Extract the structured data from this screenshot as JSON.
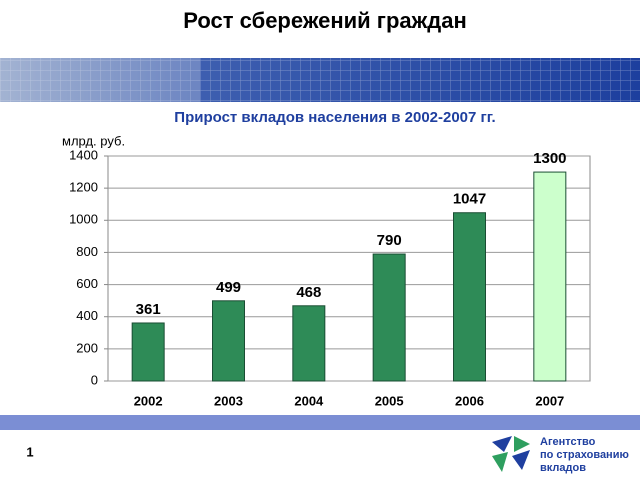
{
  "slide": {
    "title": "Рост сбережений граждан",
    "page_number": "1",
    "logo": [
      "Агентство",
      "по страхованию",
      "вкладов"
    ]
  },
  "chart_data": {
    "type": "bar",
    "title": "Прирост вкладов населения в 2002-2007 гг.",
    "y_label": "млрд. руб.",
    "categories": [
      "2002",
      "2003",
      "2004",
      "2005",
      "2006",
      "2007"
    ],
    "values": [
      361,
      499,
      468,
      790,
      1047,
      1300
    ],
    "colors": [
      "#2e8b57",
      "#2e8b57",
      "#2e8b57",
      "#2e8b57",
      "#2e8b57",
      "#ccffcc"
    ],
    "ylim": [
      0,
      1400
    ],
    "yticks": [
      0,
      200,
      400,
      600,
      800,
      1000,
      1200,
      1400
    ],
    "grid": true
  }
}
